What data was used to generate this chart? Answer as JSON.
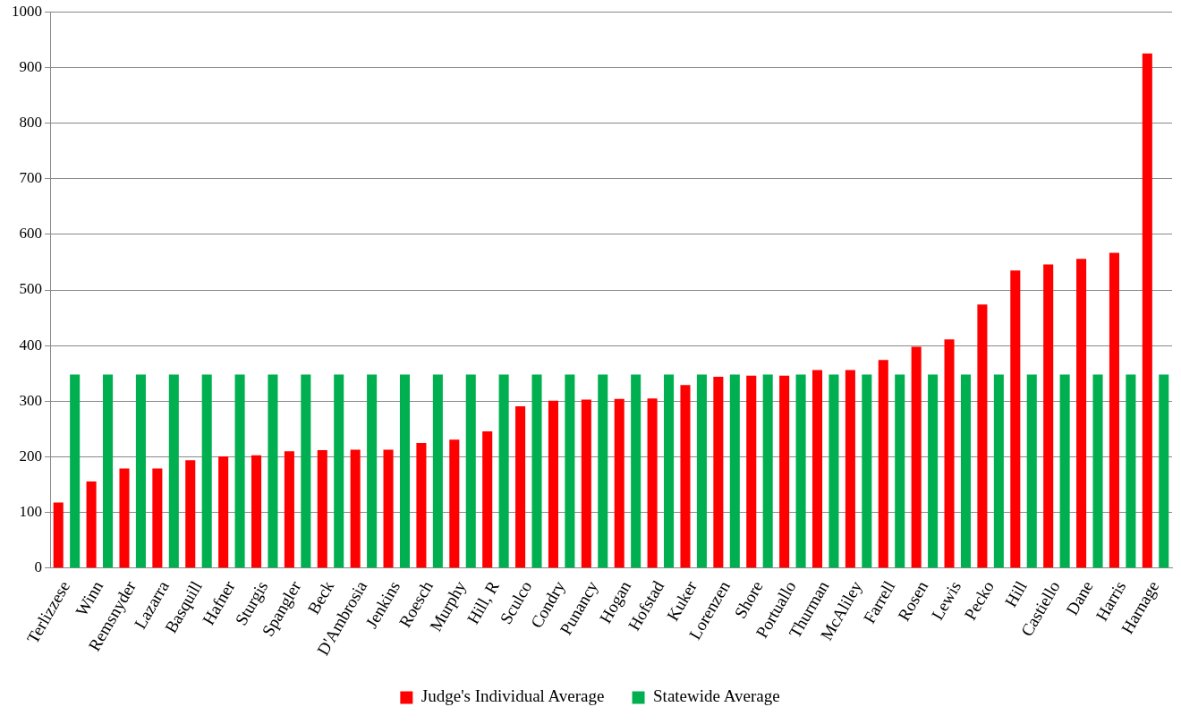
{
  "chart_data": {
    "type": "bar",
    "categories": [
      "Terlizzese",
      "Winn",
      "Remsnyder",
      "Lazarra",
      "Basquill",
      "Hafner",
      "Sturgis",
      "Spangler",
      "Beck",
      "D'Ambrosia",
      "Jenkins",
      "Roesch",
      "Murphy",
      "Hill, R",
      "Sculco",
      "Condry",
      "Punancy",
      "Hogan",
      "Hofstad",
      "Kuker",
      "Lorenzen",
      "Shore",
      "Portuallo",
      "Thurman",
      "McAliley",
      "Farrell",
      "Rosen",
      "Lewis",
      "Pecko",
      "Hill",
      "Castiello",
      "Dane",
      "Harris",
      "Harnage"
    ],
    "series": [
      {
        "name": "Judge's Individual Average",
        "color": "#ff0000",
        "values": [
          118,
          156,
          179,
          179,
          194,
          201,
          203,
          210,
          212,
          213,
          213,
          225,
          231,
          246,
          291,
          301,
          303,
          304,
          305,
          329,
          344,
          346,
          346,
          356,
          356,
          374,
          398,
          411,
          474,
          535,
          546,
          556,
          567,
          925
        ]
      },
      {
        "name": "Statewide Average",
        "color": "#00b050",
        "values": [
          348,
          348,
          348,
          348,
          348,
          348,
          348,
          348,
          348,
          348,
          348,
          348,
          348,
          348,
          348,
          348,
          348,
          348,
          348,
          348,
          348,
          348,
          348,
          348,
          348,
          348,
          348,
          348,
          348,
          348,
          348,
          348,
          348,
          348
        ]
      }
    ],
    "ylim": [
      0,
      1000
    ],
    "yticks": [
      0,
      100,
      200,
      300,
      400,
      500,
      600,
      700,
      800,
      900,
      1000
    ],
    "grid": "y",
    "legend": "bottom"
  }
}
